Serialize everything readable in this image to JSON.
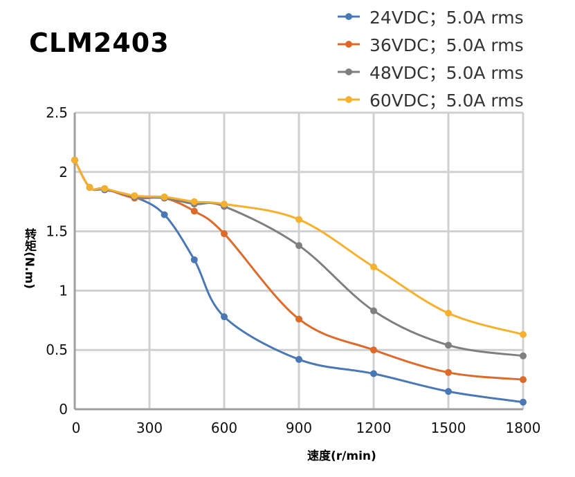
{
  "chart_data": {
    "type": "line",
    "title": "CLM2403",
    "xlabel": "速度(r/min)",
    "ylabel": "转矩(N.m)",
    "xlim": [
      0,
      1800
    ],
    "ylim": [
      0,
      2.5
    ],
    "xticks": [
      0,
      300,
      600,
      900,
      1200,
      1500,
      1800
    ],
    "yticks": [
      0,
      0.5,
      1,
      1.5,
      2,
      2.5
    ],
    "xtick_labels": [
      "0",
      "300",
      "600",
      "900",
      "1200",
      "1500",
      "1800"
    ],
    "ytick_labels": [
      "0",
      "0.5",
      "1",
      "1.5",
      "2",
      "2.5"
    ],
    "grid": true,
    "legend_position": "top-right",
    "x": [
      0,
      60,
      120,
      240,
      360,
      480,
      600,
      900,
      1200,
      1500,
      1800
    ],
    "series": [
      {
        "name": "24VDC；5.0A rms",
        "color": "#4a78b4",
        "values": [
          2.1,
          1.87,
          1.85,
          1.79,
          1.64,
          1.26,
          0.78,
          0.42,
          0.3,
          0.15,
          0.06
        ]
      },
      {
        "name": "36VDC；5.0A rms",
        "color": "#de6a2a",
        "values": [
          2.1,
          1.87,
          1.86,
          1.78,
          1.78,
          1.67,
          1.48,
          0.76,
          0.5,
          0.31,
          0.25
        ]
      },
      {
        "name": "48VDC；5.0A rms",
        "color": "#7f7f7f",
        "values": [
          2.1,
          1.87,
          1.86,
          1.79,
          1.78,
          1.73,
          1.71,
          1.38,
          0.83,
          0.54,
          0.45
        ]
      },
      {
        "name": "60VDC；5.0A rms",
        "color": "#f5b12e",
        "values": [
          2.1,
          1.87,
          1.86,
          1.8,
          1.79,
          1.75,
          1.73,
          1.6,
          1.2,
          0.81,
          0.63
        ]
      }
    ]
  }
}
